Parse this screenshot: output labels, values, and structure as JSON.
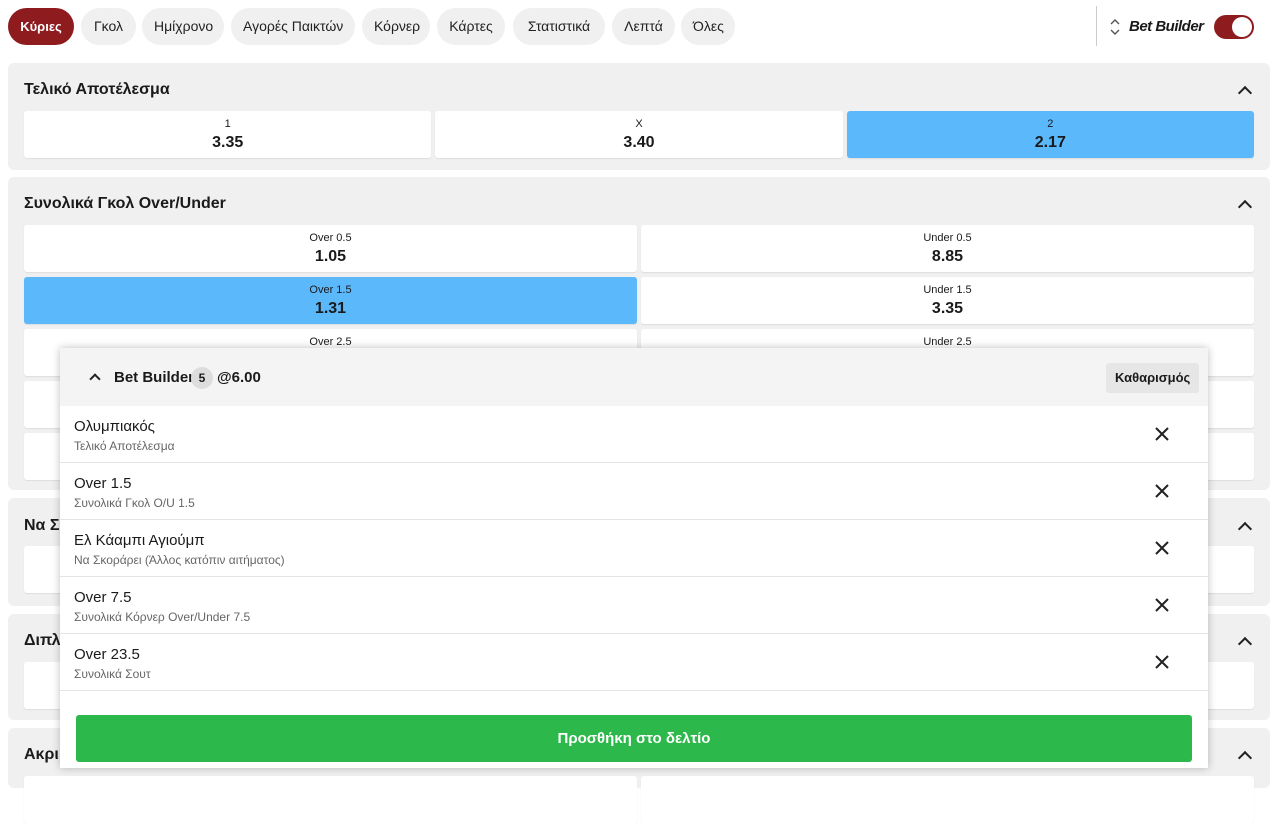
{
  "tabs": [
    "Κύριες",
    "Γκολ",
    "Ημίχρονο",
    "Αγορές Παικτών",
    "Κόρνερ",
    "Κάρτες",
    "Στατιστικά",
    "Λεπτά",
    "Όλες"
  ],
  "toggle_label": "Bet Builder",
  "markets": [
    {
      "title": "Τελικό Αποτέλεσμα",
      "columns": 3,
      "outcomes": [
        {
          "label": "1",
          "odds": "3.35"
        },
        {
          "label": "X",
          "odds": "3.40"
        },
        {
          "label": "2",
          "odds": "2.17",
          "selected": true
        }
      ]
    },
    {
      "title": "Συνολικά Γκολ Over/Under",
      "columns": 2,
      "outcomes": [
        {
          "label": "Over 0.5",
          "odds": "1.05"
        },
        {
          "label": "Under 0.5",
          "odds": "8.85"
        },
        {
          "label": "Over 1.5",
          "odds": "1.31",
          "selected": true
        },
        {
          "label": "Under 1.5",
          "odds": "3.35"
        },
        {
          "label": "Over 2.5"
        },
        {
          "label": "Under 2.5"
        }
      ]
    },
    {
      "title": "Να Σ"
    },
    {
      "title": "Διπλ"
    },
    {
      "title": "Ακρι"
    }
  ],
  "bet_builder": {
    "title": "Bet Builder",
    "count": "5",
    "total": "@6.00",
    "clear": "Καθαρισμός",
    "selections": [
      {
        "name": "Ολυμπιακός",
        "market": "Τελικό Αποτέλεσμα"
      },
      {
        "name": "Over 1.5",
        "market": "Συνολικά Γκολ O/U 1.5"
      },
      {
        "name": "Ελ Κάαμπι Αγιούμπ",
        "market": "Να Σκοράρει (Άλλος κατόπιν αιτήματος)"
      },
      {
        "name": "Over 7.5",
        "market": "Συνολικά Κόρνερ Over/Under 7.5"
      },
      {
        "name": "Over 23.5",
        "market": "Συνολικά Σουτ"
      }
    ],
    "submit": "Προσθήκη στο δελτίο"
  }
}
